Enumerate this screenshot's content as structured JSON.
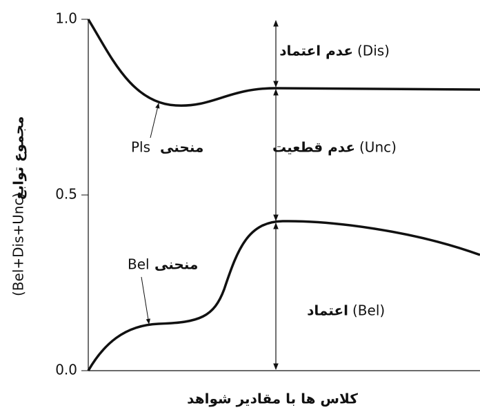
{
  "axis": {
    "y_label_latin": "(Bel+Dis+Unc)",
    "y_label": "مجموع توابع",
    "x_label": "کلاس ها با مقادیر شواهد",
    "y_ticks": [
      "0.0",
      "0.5",
      "1.0"
    ]
  },
  "regions": [
    {
      "label": "عدم اعتماد",
      "code": "(Dis)"
    },
    {
      "label": "عدم قطعیت",
      "code": "(Unc)"
    },
    {
      "label": "اعتماد",
      "code": "(Bel)"
    }
  ],
  "curves": [
    {
      "label": "منحنی",
      "code": "Pls"
    },
    {
      "label": "منحنی",
      "code": "Bel"
    }
  ]
}
